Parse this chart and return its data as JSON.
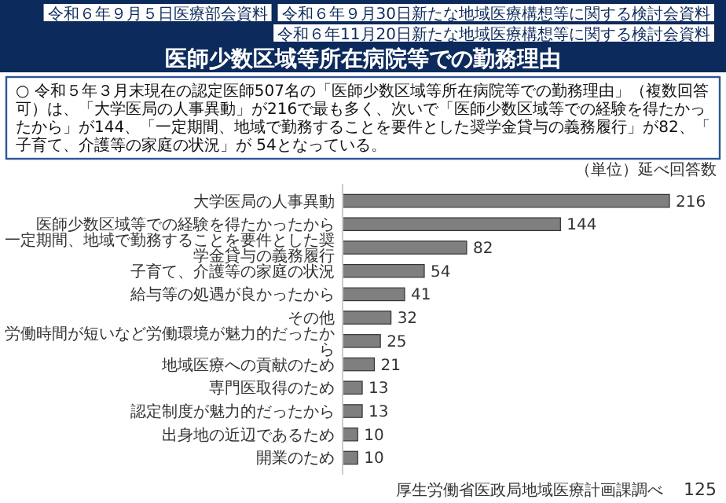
{
  "chart_data": {
    "type": "bar",
    "orientation": "horizontal",
    "title": "医師少数区域等所在病院等での勤務理由",
    "subtitle": "○ 令和５年３月末現在の認定医師507名の「医師少数区域等所在病院等での勤務理由」（複数回答可）は、「大学医局の人事異動」が216で最も多く、次いで「医師少数区域等での経験を得たかったから」が144、「一定期間、地域で勤務することを要件とした奨学金貸与の義務履行」が82、「子育て、介護等の家庭の状況」が 54となっている。",
    "categories": [
      "大学医局の人事異動",
      "医師少数区域等での経験を得たかったから",
      "一定期間、地域で勤務することを要件とした奨学金貸与の義務履行",
      "子育て、介護等の家庭の状況",
      "給与等の処遇が良かったから",
      "その他",
      "労働時間が短いなど労働環境が魅力的だったから",
      "地域医療への貢献のため",
      "専門医取得のため",
      "認定制度が魅力的だったから",
      "出身地の近辺であるため",
      "開業のため"
    ],
    "values": [
      216,
      144,
      82,
      54,
      41,
      32,
      25,
      21,
      13,
      13,
      10,
      10
    ],
    "color": "#7f7f7f",
    "data_labels": true,
    "annotations": [
      "令和６年９月５日医療部会資料",
      "令和６年９月30日新たな地域医療構想等に関する検討会資料",
      "令和６年11月20日新たな地域医療構想等に関する検討会資料",
      "（単位）延べ回答数",
      "厚生労働省医政局地域医療計画課調べ",
      "125"
    ]
  }
}
